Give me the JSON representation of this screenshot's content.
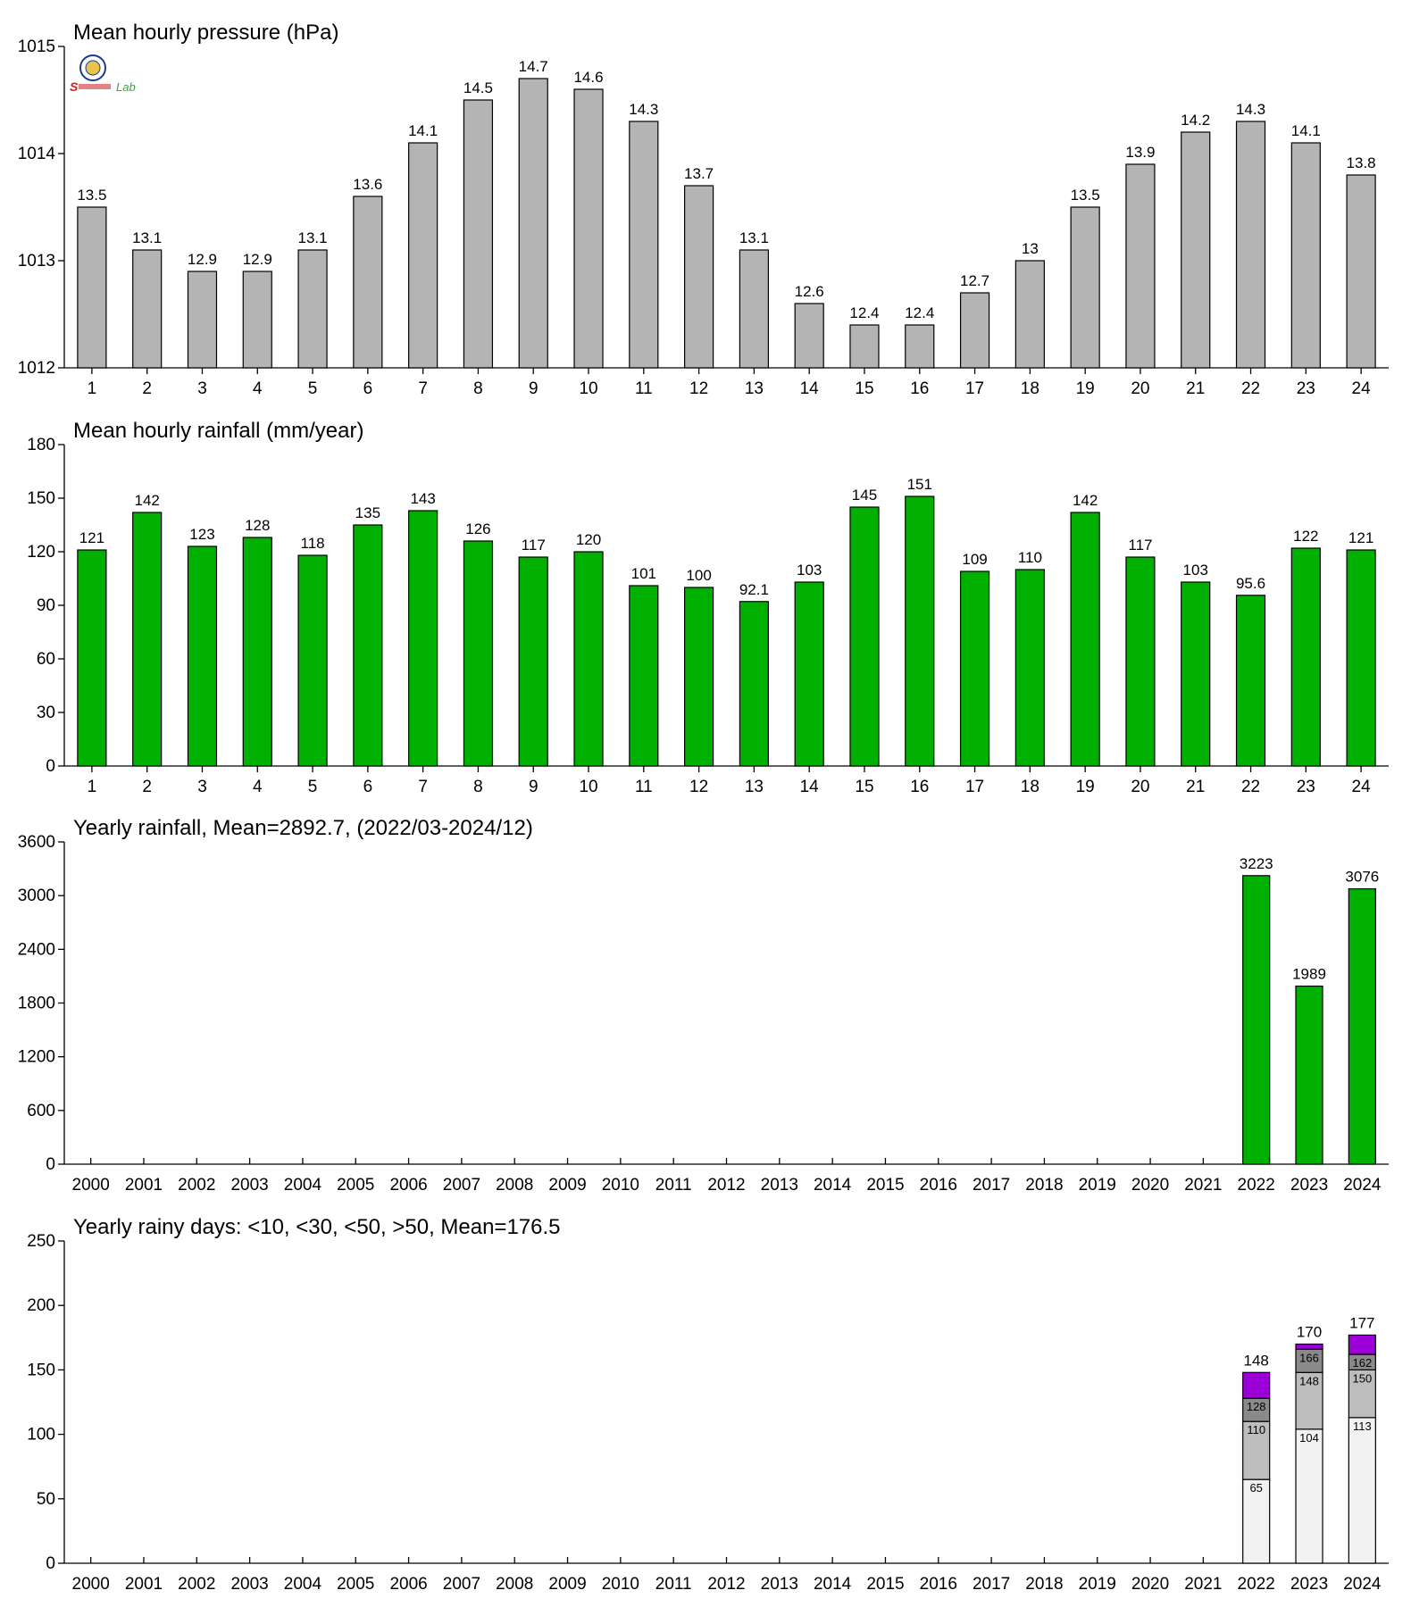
{
  "logo": {
    "text": "Lab",
    "letter": "S",
    "colors": {
      "ring": "#1a3c8f",
      "text_red": "#d0191b",
      "text_green": "#3aa33a"
    }
  },
  "colors": {
    "pressure": "#b4b4b4",
    "rainfall": "#00b000",
    "days_lt10": "#f2f2f2",
    "days_lt30": "#bdbdbd",
    "days_lt50": "#8a8a8a",
    "days_gt50": "#9b00d8"
  },
  "chart_data": [
    {
      "type": "bar",
      "title": "Mean hourly pressure (hPa)",
      "categories": [
        "1",
        "2",
        "3",
        "4",
        "5",
        "6",
        "7",
        "8",
        "9",
        "10",
        "11",
        "12",
        "13",
        "14",
        "15",
        "16",
        "17",
        "18",
        "19",
        "20",
        "21",
        "22",
        "23",
        "24"
      ],
      "values": [
        1013.5,
        1013.1,
        1012.9,
        1012.9,
        1013.1,
        1013.6,
        1014.1,
        1014.5,
        1014.7,
        1014.6,
        1014.3,
        1013.7,
        1013.1,
        1012.6,
        1012.4,
        1012.4,
        1012.7,
        1013.0,
        1013.5,
        1013.9,
        1014.2,
        1014.3,
        1014.1,
        1013.8
      ],
      "value_labels": [
        "13.5",
        "13.1",
        "12.9",
        "12.9",
        "13.1",
        "13.6",
        "14.1",
        "14.5",
        "14.7",
        "14.6",
        "14.3",
        "13.7",
        "13.1",
        "12.6",
        "12.4",
        "12.4",
        "12.7",
        "13",
        "13.5",
        "13.9",
        "14.2",
        "14.3",
        "14.1",
        "13.8"
      ],
      "ylim": [
        1012,
        1015
      ],
      "yticks": [
        "1012",
        "1013",
        "1014",
        "1015"
      ],
      "color_key": "pressure"
    },
    {
      "type": "bar",
      "title": "Mean hourly rainfall (mm/year)",
      "categories": [
        "1",
        "2",
        "3",
        "4",
        "5",
        "6",
        "7",
        "8",
        "9",
        "10",
        "11",
        "12",
        "13",
        "14",
        "15",
        "16",
        "17",
        "18",
        "19",
        "20",
        "21",
        "22",
        "23",
        "24"
      ],
      "values": [
        121,
        142,
        123,
        128,
        118,
        135,
        143,
        126,
        117,
        120,
        101,
        100,
        92.1,
        103,
        145,
        151,
        109,
        110,
        142,
        117,
        103,
        95.6,
        122,
        121
      ],
      "value_labels": [
        "121",
        "142",
        "123",
        "128",
        "118",
        "135",
        "143",
        "126",
        "117",
        "120",
        "101",
        "100",
        "92.1",
        "103",
        "145",
        "151",
        "109",
        "110",
        "142",
        "117",
        "103",
        "95.6",
        "122",
        "121"
      ],
      "ylim": [
        0,
        180
      ],
      "yticks": [
        "0",
        "30",
        "60",
        "90",
        "120",
        "150",
        "180"
      ],
      "color_key": "rainfall"
    },
    {
      "type": "bar",
      "title": "Yearly rainfall, Mean=2892.7, (2022/03-2024/12)",
      "categories": [
        "2000",
        "2001",
        "2002",
        "2003",
        "2004",
        "2005",
        "2006",
        "2007",
        "2008",
        "2009",
        "2010",
        "2011",
        "2012",
        "2013",
        "2014",
        "2015",
        "2016",
        "2017",
        "2018",
        "2019",
        "2020",
        "2021",
        "2022",
        "2023",
        "2024"
      ],
      "values": [
        null,
        null,
        null,
        null,
        null,
        null,
        null,
        null,
        null,
        null,
        null,
        null,
        null,
        null,
        null,
        null,
        null,
        null,
        null,
        null,
        null,
        null,
        3223,
        1989,
        3076
      ],
      "value_labels": [
        "",
        "",
        "",
        "",
        "",
        "",
        "",
        "",
        "",
        "",
        "",
        "",
        "",
        "",
        "",
        "",
        "",
        "",
        "",
        "",
        "",
        "",
        "3223",
        "1989",
        "3076"
      ],
      "ylim": [
        0,
        3600
      ],
      "yticks": [
        "0",
        "600",
        "1200",
        "1800",
        "2400",
        "3000",
        "3600"
      ],
      "color_key": "rainfall"
    },
    {
      "type": "bar",
      "stacked": true,
      "title": "Yearly rainy days: <10, <30, <50, >50, Mean=176.5",
      "categories": [
        "2000",
        "2001",
        "2002",
        "2003",
        "2004",
        "2005",
        "2006",
        "2007",
        "2008",
        "2009",
        "2010",
        "2011",
        "2012",
        "2013",
        "2014",
        "2015",
        "2016",
        "2017",
        "2018",
        "2019",
        "2020",
        "2021",
        "2022",
        "2023",
        "2024"
      ],
      "cumulative": [
        {
          "year": "2022",
          "levels": [
            65,
            110,
            128,
            148
          ],
          "labels": [
            "65",
            "110",
            "128"
          ],
          "total_label": "148"
        },
        {
          "year": "2023",
          "levels": [
            104,
            148,
            166,
            170
          ],
          "labels": [
            "104",
            "148",
            "166"
          ],
          "total_label": "170"
        },
        {
          "year": "2024",
          "levels": [
            113,
            150,
            162,
            177
          ],
          "labels": [
            "113",
            "150",
            "162"
          ],
          "total_label": "177"
        }
      ],
      "ylim": [
        0,
        250
      ],
      "yticks": [
        "0",
        "50",
        "100",
        "150",
        "200",
        "250"
      ],
      "color_keys": [
        "days_lt10",
        "days_lt30",
        "days_lt50",
        "days_gt50"
      ]
    }
  ]
}
